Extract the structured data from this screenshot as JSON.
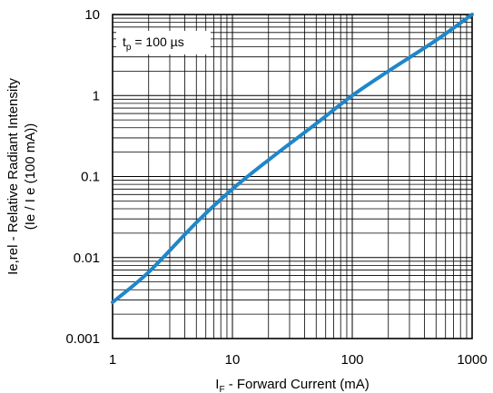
{
  "chart_data": {
    "type": "line",
    "title": "",
    "x_scale": "log",
    "y_scale": "log",
    "xlim": [
      1,
      1000
    ],
    "ylim": [
      0.001,
      10
    ],
    "grid": true,
    "x_ticks": [
      "1",
      "10",
      "100",
      "1000"
    ],
    "y_ticks": [
      "0.001",
      "0.01",
      "0.1",
      "1",
      "10"
    ],
    "xlabel": {
      "symbol": "I",
      "subscript": "F",
      "rest": " - Forward Current (mA)"
    },
    "ylabel": {
      "line1": "Ie,rel - Relative Radiant Intensity",
      "line2": "(Ie / I e (100 mA))"
    },
    "annotation": {
      "symbol": "t",
      "subscript": "p",
      "rest": " = 100 µs"
    },
    "series": [
      {
        "color": "#1f86c8",
        "x": [
          1,
          2,
          5,
          10,
          20,
          50,
          100,
          200,
          500,
          1000
        ],
        "y": [
          0.0028,
          0.0066,
          0.027,
          0.07,
          0.16,
          0.45,
          1.0,
          2.0,
          4.8,
          10.0
        ]
      }
    ]
  }
}
